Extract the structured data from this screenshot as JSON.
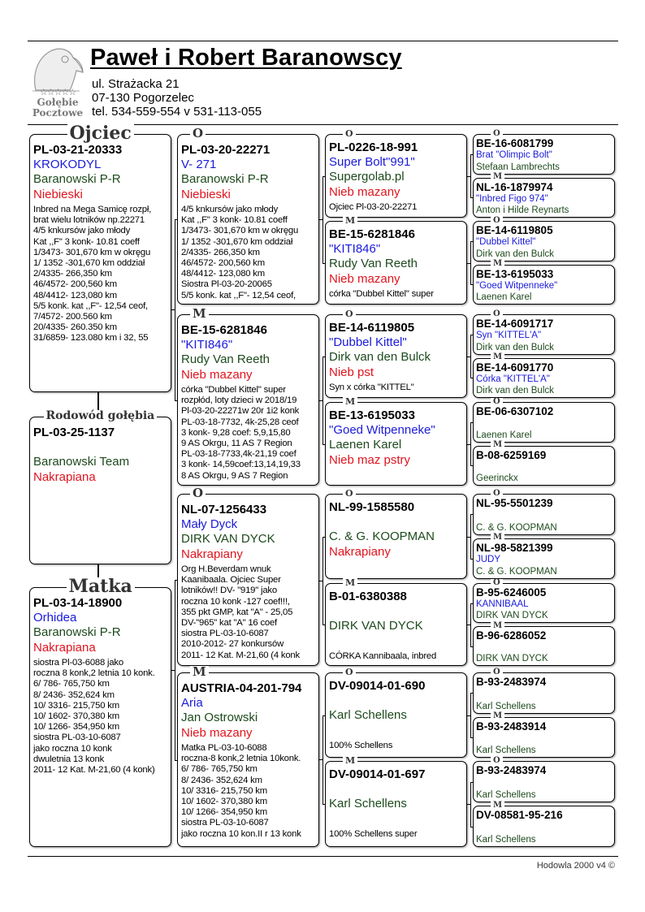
{
  "header": {
    "title": "Paweł i Robert Baranowscy",
    "address_line1": "ul. Strażacka 21",
    "address_line2": "07-130 Pogorzelec",
    "phone": "tel. 534-559-554 v 531-113-055",
    "logo": {
      "stars": "☆☆☆☆☆",
      "line1": "Gołębie",
      "line2": "Pocztowe"
    }
  },
  "colors": {
    "ring": "#000000",
    "name": "#1a1adb",
    "breeder": "#1d4a1d",
    "color": "#e0141e"
  },
  "subject": {
    "label": "Rodowód gołębia",
    "ring": "PL-03-25-1137",
    "name": "",
    "breeder": "Baranowski Team",
    "color": "Nakrapiana",
    "notes": []
  },
  "parents": [
    {
      "label": "Ojciec",
      "ring": "PL-03-21-20333",
      "name": "KROKODYL",
      "breeder": "Baranowski P-R",
      "color": "Niebieski",
      "notes": [
        "Inbred na Mega Samicę rozpł,",
        "brat wielu lotników  np.22271",
        "4/5 knkursów jako młody",
        "Kat ,,F\" 3 konk- 10.81 coeff",
        "1/3473- 301,670 km w okręgu",
        "1/ 1352 -301,670 km oddział",
        "2/4335- 266,350 km",
        "46/4572- 200,560 km",
        "48/4412- 123,080 km",
        "5/5 konk. kat ,,F\"- 12,54 ceof,",
        "7/4572- 200.560 km",
        "20/4335- 260.350 km",
        "31/6859- 123.080 km i 32, 55"
      ]
    },
    {
      "label": "Matka",
      "ring": "PL-03-14-18900",
      "name": "Orhidea",
      "breeder": "Baranowski P-R",
      "color": "Nakrapiana",
      "notes": [
        "siostra Pl-03-6088 jako",
        "roczna 8 konk,2 letnia 10 konk.",
        "6/ 786- 765,750 km",
        "8/ 2436- 352,624 km",
        "10/ 3316- 215,750 km",
        "10/ 1602- 370,380 km",
        "10/ 1266- 354,950 km",
        "siostra PL-03-10-6087",
        "jako roczna 10 konk",
        "dwuletnia 13 konk",
        "2011- 12 Kat. M-21,60 (4 konk)"
      ]
    }
  ],
  "grandparents": [
    {
      "label": "O",
      "ring": "PL-03-20-22271",
      "name": "V- 271",
      "breeder": "Baranowski P-R",
      "color": "Niebieski",
      "notes": [
        "4/5 knkursów jako młody",
        "Kat ,,F\" 3 konk- 10.81 coeff",
        "1/3473- 301,670 km w okręgu",
        "1/ 1352 -301,670 km oddział",
        "2/4335- 266,350 km",
        "46/4572- 200,560 km",
        "48/4412- 123,080 km",
        "Siostra Pl-03-20-20065",
        "5/5 konk. kat ,,F\"- 12,54 ceof,"
      ]
    },
    {
      "label": "M",
      "ring": "BE-15-6281846",
      "name": "\"KITI846\"",
      "breeder": "Rudy Van Reeth",
      "color": "Nieb mazany",
      "notes": [
        "córka \"Dubbel Kittel\" super",
        "rozpłód,  loty dzieci w 2018/19",
        "Pl-03-20-22271w 20r 1i2 konk",
        "PL-03-18-7732, 4k-25,28 ceof",
        "3 konk- 9,28 coef: 5,9,15,80",
        "9 AS Okrgu, 11 AS 7 Region",
        "PL-03-18-7733,4k-21,19 coef",
        "3 konk- 14,59coef:13,14,19,33",
        "8 AS Okrgu, 9 AS 7 Region"
      ]
    },
    {
      "label": "O",
      "ring": "NL-07-1256433",
      "name": "Mały Dyck",
      "breeder": "DIRK VAN DYCK",
      "color": "Nakrapiany",
      "notes": [
        "Org H.Beverdam wnuk",
        "Kaanibaala. Ojciec Super",
        "lotników!!  DV- \"919\" jako",
        "roczna 10 konk -127 coef!!!,",
        "355 pkt GMP, kat \"A\" - 25,05",
        " DV-\"965\" kat \"A\" 16 coef",
        "siostra PL-03-10-6087",
        "2010-2012-  27  konkursów",
        "2011- 12 Kat. M-21,60 (4 konk"
      ]
    },
    {
      "label": "M",
      "ring": "AUSTRIA-04-201-794",
      "name": "Aria",
      "breeder": "Jan Ostrowski",
      "color": "Nieb mazany",
      "notes": [
        "Matka PL-03-10-6088",
        "roczna-8 konk,2 letnia 10konk.",
        "6/ 786- 765,750 km",
        "8/ 2436- 352,624 km",
        "10/ 3316- 215,750 km",
        "10/ 1602- 370,380 km",
        "10/ 1266- 354,950 km",
        "siostra PL-03-10-6087",
        "jako roczna 10 kon.II r 13 konk"
      ]
    }
  ],
  "great_grandparents": [
    {
      "label": "O",
      "ring": "PL-0226-18-991",
      "name": "Super Bolt\"991\"",
      "breeder": "Supergolab.pl",
      "color": "Nieb mazany",
      "notes": [
        "Ojciec Pl-03-20-22271"
      ]
    },
    {
      "label": "M",
      "ring": "BE-15-6281846",
      "name": "\"KITI846\"",
      "breeder": "Rudy Van Reeth",
      "color": "Nieb mazany",
      "notes": [
        "córka \"Dubbel Kittel\" super"
      ]
    },
    {
      "label": "O",
      "ring": "BE-14-6119805",
      "name": "\"Dubbel Kittel\"",
      "breeder": "Dirk van den Bulck",
      "color": "Nieb pst",
      "notes": [
        "Syn x córka \"KITTEL\""
      ]
    },
    {
      "label": "M",
      "ring": "BE-13-6195033",
      "name": "\"Goed Witpenneke\"",
      "breeder": "Laenen Karel",
      "color": "Nieb maz pstry",
      "notes": []
    },
    {
      "label": "O",
      "ring": "NL-99-1585580",
      "name": "",
      "breeder": "C. & G. KOOPMAN",
      "color": "Nakrapiany",
      "notes": []
    },
    {
      "label": "M",
      "ring": "B-01-6380388",
      "name": "",
      "breeder": "DIRK VAN DYCK",
      "color": "",
      "notes": [
        "CÓRKA Kannibaala, inbred"
      ]
    },
    {
      "label": "O",
      "ring": "DV-09014-01-690",
      "name": "",
      "breeder": "Karl Schellens",
      "color": "",
      "notes": [
        "100% Schellens"
      ]
    },
    {
      "label": "M",
      "ring": "DV-09014-01-697",
      "name": "",
      "breeder": "Karl Schellens",
      "color": "",
      "notes": [
        "100% Schellens super"
      ]
    }
  ],
  "gen4": [
    {
      "label": "O",
      "ring": "BE-16-6081799",
      "name": "Brat \"Olimpic Bolt\"",
      "breeder": "Stefaan Lambrechts"
    },
    {
      "label": "M",
      "ring": "NL-16-1879974",
      "name": "\"Inbred Figo 974\"",
      "breeder": "Anton i Hilde Reynarts"
    },
    {
      "label": "O",
      "ring": "BE-14-6119805",
      "name": "\"Dubbel Kittel\"",
      "breeder": "Dirk van den Bulck"
    },
    {
      "label": "M",
      "ring": "BE-13-6195033",
      "name": "\"Goed Witpenneke\"",
      "breeder": "Laenen Karel"
    },
    {
      "label": "O",
      "ring": "BE-14-6091717",
      "name": "Syn \"KITTEL'A\"",
      "breeder": "Dirk van den Bulck"
    },
    {
      "label": "M",
      "ring": "BE-14-6091770",
      "name": "Córka \"KITTEL'A\"",
      "breeder": "Dirk van den Bulck"
    },
    {
      "label": "O",
      "ring": "BE-06-6307102",
      "name": "",
      "breeder": "Laenen Karel"
    },
    {
      "label": "M",
      "ring": "B-08-6259169",
      "name": "",
      "breeder": "Geerinckx"
    },
    {
      "label": "O",
      "ring": "NL-95-5501239",
      "name": "",
      "breeder": "C. & G. KOOPMAN"
    },
    {
      "label": "M",
      "ring": "NL-98-5821399",
      "name": "JUDY",
      "breeder": "C. & G. KOOPMAN"
    },
    {
      "label": "O",
      "ring": "B-95-6246005",
      "name": " KANNIBAAL",
      "breeder": "DIRK VAN DYCK"
    },
    {
      "label": "M",
      "ring": "B-96-6286052",
      "name": "",
      "breeder": "DIRK VAN DYCK"
    },
    {
      "label": "O",
      "ring": "B-93-2483974",
      "name": "",
      "breeder": "Karl Schellens"
    },
    {
      "label": "M",
      "ring": "B-93-2483914",
      "name": "",
      "breeder": "Karl Schellens"
    },
    {
      "label": "O",
      "ring": "B-93-2483974",
      "name": "",
      "breeder": "Karl Schellens"
    },
    {
      "label": "M",
      "ring": "DV-08581-95-216",
      "name": "",
      "breeder": "Karl Schellens"
    }
  ],
  "footer": "Hodowla 2000 v4 ©"
}
